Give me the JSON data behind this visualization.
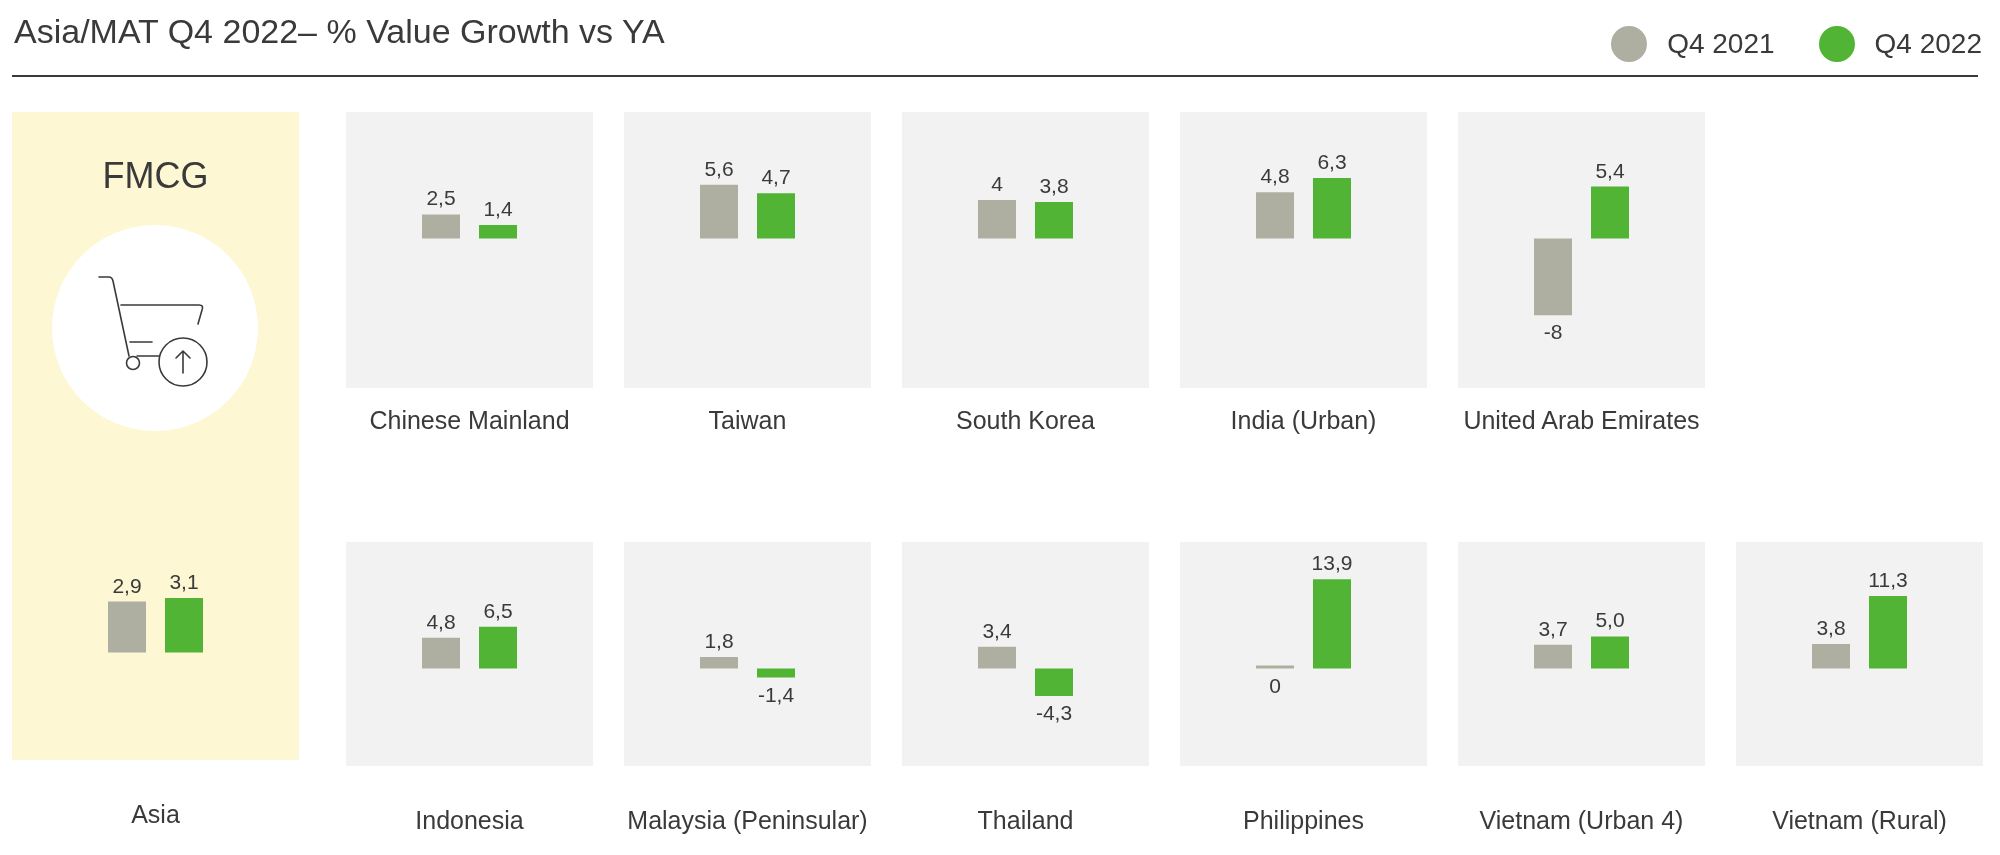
{
  "chart_data": [
    {
      "type": "bar",
      "title": "Asia/MAT Q4 2022– % Value Growth vs YA",
      "annotations": [
        "FMCG"
      ],
      "legend": "top right",
      "categories": [
        "Asia"
      ],
      "series": [
        {
          "name": "Q4 2021",
          "color": "#afafa1",
          "values": [
            2.9
          ],
          "value_labels": [
            "2,9"
          ]
        },
        {
          "name": "Q4 2022",
          "color": "#51b434",
          "values": [
            3.1
          ],
          "value_labels": [
            "3,1"
          ]
        }
      ]
    },
    {
      "type": "bar",
      "categories": [
        "Chinese Mainland"
      ],
      "series": [
        {
          "color": "#afafa1",
          "values": [
            2.5
          ],
          "value_labels": [
            "2,5"
          ]
        },
        {
          "color": "#51b434",
          "values": [
            1.4
          ],
          "value_labels": [
            "1,4"
          ]
        }
      ]
    },
    {
      "type": "bar",
      "categories": [
        "Taiwan"
      ],
      "series": [
        {
          "color": "#afafa1",
          "values": [
            5.6
          ],
          "value_labels": [
            "5,6"
          ]
        },
        {
          "color": "#51b434",
          "values": [
            4.7
          ],
          "value_labels": [
            "4,7"
          ]
        }
      ]
    },
    {
      "type": "bar",
      "categories": [
        "South Korea"
      ],
      "series": [
        {
          "color": "#afafa1",
          "values": [
            4
          ],
          "value_labels": [
            "4"
          ]
        },
        {
          "color": "#51b434",
          "values": [
            3.8
          ],
          "value_labels": [
            "3,8"
          ]
        }
      ]
    },
    {
      "type": "bar",
      "categories": [
        "India (Urban)"
      ],
      "series": [
        {
          "color": "#afafa1",
          "values": [
            4.8
          ],
          "value_labels": [
            "4,8"
          ]
        },
        {
          "color": "#51b434",
          "values": [
            6.3
          ],
          "value_labels": [
            "6,3"
          ]
        }
      ]
    },
    {
      "type": "bar",
      "categories": [
        "United Arab Emirates"
      ],
      "series": [
        {
          "color": "#afafa1",
          "values": [
            -8
          ],
          "value_labels": [
            "-8"
          ]
        },
        {
          "color": "#51b434",
          "values": [
            5.4
          ],
          "value_labels": [
            "5,4"
          ]
        }
      ]
    },
    {
      "type": "bar",
      "categories": [
        "Indonesia"
      ],
      "series": [
        {
          "color": "#afafa1",
          "values": [
            4.8
          ],
          "value_labels": [
            "4,8"
          ]
        },
        {
          "color": "#51b434",
          "values": [
            6.5
          ],
          "value_labels": [
            "6,5"
          ]
        }
      ]
    },
    {
      "type": "bar",
      "categories": [
        "Malaysia (Peninsular)"
      ],
      "series": [
        {
          "color": "#afafa1",
          "values": [
            1.8
          ],
          "value_labels": [
            "1,8"
          ]
        },
        {
          "color": "#51b434",
          "values": [
            -1.4
          ],
          "value_labels": [
            "-1,4"
          ]
        }
      ]
    },
    {
      "type": "bar",
      "categories": [
        "Thailand"
      ],
      "series": [
        {
          "color": "#afafa1",
          "values": [
            3.4
          ],
          "value_labels": [
            "3,4"
          ]
        },
        {
          "color": "#51b434",
          "values": [
            -4.3
          ],
          "value_labels": [
            "-4,3"
          ]
        }
      ]
    },
    {
      "type": "bar",
      "categories": [
        "Philippines"
      ],
      "series": [
        {
          "color": "#afafa1",
          "values": [
            0
          ],
          "value_labels": [
            "0"
          ]
        },
        {
          "color": "#51b434",
          "values": [
            13.9
          ],
          "value_labels": [
            "13,9"
          ]
        }
      ]
    },
    {
      "type": "bar",
      "categories": [
        "Vietnam (Urban 4)"
      ],
      "series": [
        {
          "color": "#afafa1",
          "values": [
            3.7
          ],
          "value_labels": [
            "3,7"
          ]
        },
        {
          "color": "#51b434",
          "values": [
            5.0
          ],
          "value_labels": [
            "5,0"
          ]
        }
      ]
    },
    {
      "type": "bar",
      "categories": [
        "Vietnam (Rural)"
      ],
      "series": [
        {
          "color": "#afafa1",
          "values": [
            3.8
          ],
          "value_labels": [
            "3,8"
          ]
        },
        {
          "color": "#51b434",
          "values": [
            11.3
          ],
          "value_labels": [
            "11,3"
          ]
        }
      ]
    }
  ]
}
